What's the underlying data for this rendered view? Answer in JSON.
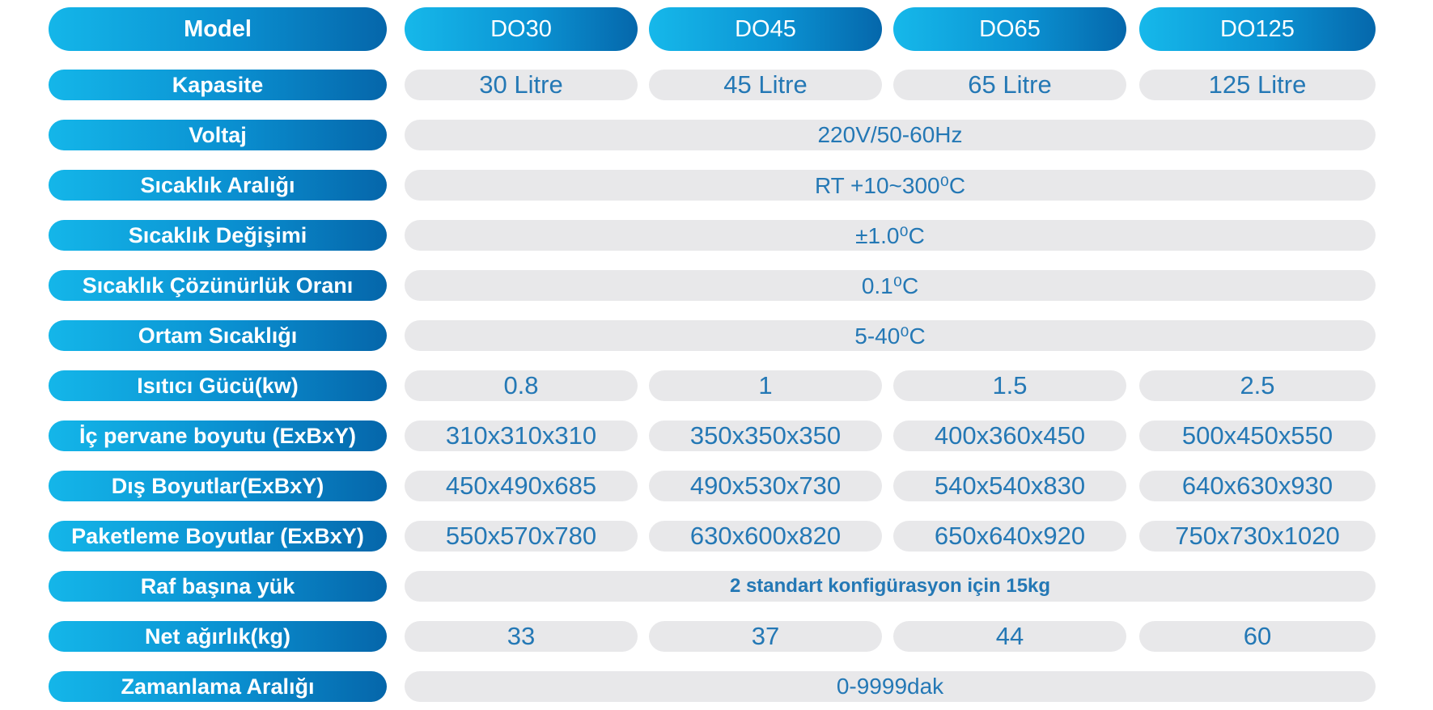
{
  "header": {
    "label": "Model",
    "models": [
      "DO30",
      "DO45",
      "DO65",
      "DO125"
    ]
  },
  "rows": [
    {
      "label": "Kapasite",
      "values": [
        "30 Litre",
        "45 Litre",
        "65 Litre",
        "125 Litre"
      ]
    },
    {
      "label": "Voltaj",
      "value": "220V/50-60Hz"
    },
    {
      "label": "Sıcaklık Aralığı",
      "value": "RT  +10~300⁰C"
    },
    {
      "label": "Sıcaklık Değişimi",
      "value": "±1.0⁰C"
    },
    {
      "label": "Sıcaklık Çözünürlük Oranı",
      "value": "0.1⁰C"
    },
    {
      "label": "Ortam Sıcaklığı",
      "value": "5-40⁰C"
    },
    {
      "label": "Isıtıcı Gücü(kw)",
      "values": [
        "0.8",
        "1",
        "1.5",
        "2.5"
      ]
    },
    {
      "label": "İç pervane boyutu (ExBxY)",
      "values": [
        "310x310x310",
        "350x350x350",
        "400x360x450",
        "500x450x550"
      ]
    },
    {
      "label": "Dış Boyutlar(ExBxY)",
      "values": [
        "450x490x685",
        "490x530x730",
        "540x540x830",
        "640x630x930"
      ]
    },
    {
      "label": "Paketleme Boyutlar (ExBxY)",
      "values": [
        "550x570x780",
        "630x600x820",
        "650x640x920",
        "750x730x1020"
      ]
    },
    {
      "label": "Raf başına yük",
      "value": "2 standart konfigürasyon için 15kg"
    },
    {
      "label": "Net ağırlık(kg)",
      "values": [
        "33",
        "37",
        "44",
        "60"
      ]
    },
    {
      "label": "Zamanlama Aralığı",
      "value": "0-9999dak"
    }
  ],
  "colors": {
    "label_gradient_start": "#14b6e9",
    "label_gradient_end": "#0566aa",
    "cell_background": "#e8e8ea",
    "cell_text": "#2478b5"
  }
}
